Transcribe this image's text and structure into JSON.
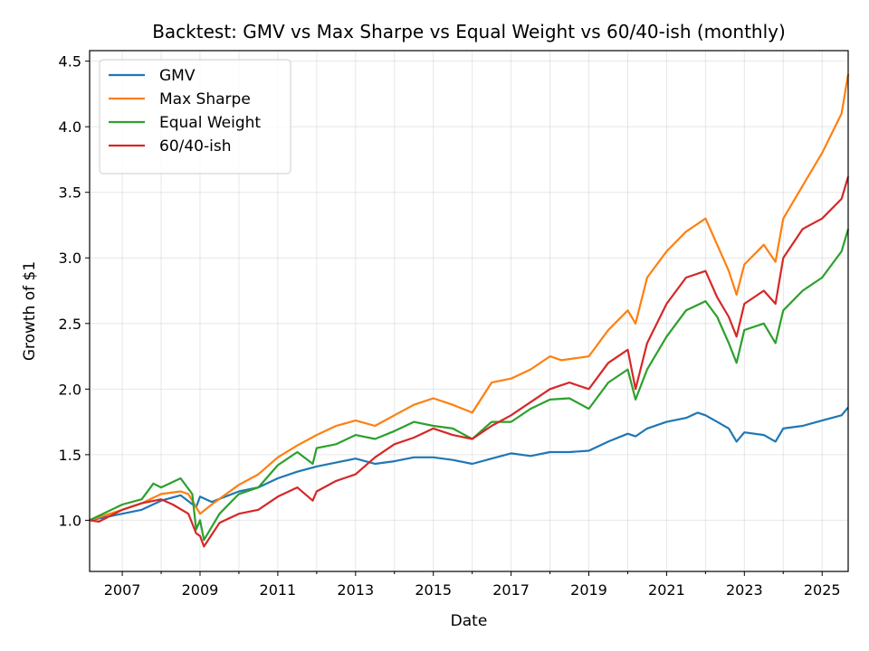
{
  "chart_data": {
    "type": "line",
    "title": "Backtest: GMV vs Max Sharpe vs Equal Weight vs 60/40-ish (monthly)",
    "xlabel": "Date",
    "ylabel": "Growth of $1",
    "xlim": [
      2006.16,
      2025.67
    ],
    "ylim": [
      0.61,
      4.58
    ],
    "xticks": [
      2007,
      2009,
      2011,
      2013,
      2015,
      2017,
      2019,
      2021,
      2023,
      2025
    ],
    "xtick_labels": [
      "2007",
      "2009",
      "2011",
      "2013",
      "2015",
      "2017",
      "2019",
      "2021",
      "2023",
      "2025"
    ],
    "minor_xticks": [
      2008,
      2010,
      2012,
      2014,
      2016,
      2018,
      2020,
      2022,
      2024
    ],
    "yticks": [
      1.0,
      1.5,
      2.0,
      2.5,
      3.0,
      3.5,
      4.0,
      4.5
    ],
    "ytick_labels": [
      "1.0",
      "1.5",
      "2.0",
      "2.5",
      "3.0",
      "3.5",
      "4.0",
      "4.5"
    ],
    "grid": true,
    "legend_position": "top-left",
    "series": [
      {
        "name": "GMV",
        "color": "#1f77b4",
        "points": [
          [
            2006.16,
            1.0
          ],
          [
            2007,
            1.05
          ],
          [
            2007.5,
            1.08
          ],
          [
            2008,
            1.15
          ],
          [
            2008.5,
            1.19
          ],
          [
            2008.9,
            1.1
          ],
          [
            2009,
            1.18
          ],
          [
            2009.3,
            1.14
          ],
          [
            2010,
            1.22
          ],
          [
            2010.5,
            1.25
          ],
          [
            2011,
            1.32
          ],
          [
            2011.5,
            1.37
          ],
          [
            2012,
            1.41
          ],
          [
            2012.5,
            1.44
          ],
          [
            2013,
            1.47
          ],
          [
            2013.5,
            1.43
          ],
          [
            2014,
            1.45
          ],
          [
            2014.5,
            1.48
          ],
          [
            2015,
            1.48
          ],
          [
            2015.5,
            1.46
          ],
          [
            2016,
            1.43
          ],
          [
            2016.5,
            1.47
          ],
          [
            2017,
            1.51
          ],
          [
            2017.5,
            1.49
          ],
          [
            2018,
            1.52
          ],
          [
            2018.5,
            1.52
          ],
          [
            2019,
            1.53
          ],
          [
            2019.5,
            1.6
          ],
          [
            2020,
            1.66
          ],
          [
            2020.2,
            1.64
          ],
          [
            2020.5,
            1.7
          ],
          [
            2021,
            1.75
          ],
          [
            2021.5,
            1.78
          ],
          [
            2021.8,
            1.82
          ],
          [
            2022,
            1.8
          ],
          [
            2022.3,
            1.75
          ],
          [
            2022.6,
            1.7
          ],
          [
            2022.8,
            1.6
          ],
          [
            2023,
            1.67
          ],
          [
            2023.5,
            1.65
          ],
          [
            2023.8,
            1.6
          ],
          [
            2024,
            1.7
          ],
          [
            2024.5,
            1.72
          ],
          [
            2025,
            1.76
          ],
          [
            2025.5,
            1.8
          ],
          [
            2025.67,
            1.86
          ]
        ]
      },
      {
        "name": "Max Sharpe",
        "color": "#ff7f0e",
        "points": [
          [
            2006.16,
            1.0
          ],
          [
            2007,
            1.08
          ],
          [
            2007.5,
            1.13
          ],
          [
            2008,
            1.2
          ],
          [
            2008.5,
            1.22
          ],
          [
            2008.7,
            1.2
          ],
          [
            2009,
            1.05
          ],
          [
            2009.3,
            1.12
          ],
          [
            2010,
            1.27
          ],
          [
            2010.5,
            1.35
          ],
          [
            2011,
            1.48
          ],
          [
            2011.5,
            1.57
          ],
          [
            2012,
            1.65
          ],
          [
            2012.5,
            1.72
          ],
          [
            2013,
            1.76
          ],
          [
            2013.5,
            1.72
          ],
          [
            2014,
            1.8
          ],
          [
            2014.5,
            1.88
          ],
          [
            2015,
            1.93
          ],
          [
            2015.5,
            1.88
          ],
          [
            2016,
            1.82
          ],
          [
            2016.5,
            2.05
          ],
          [
            2017,
            2.08
          ],
          [
            2017.5,
            2.15
          ],
          [
            2018,
            2.25
          ],
          [
            2018.3,
            2.22
          ],
          [
            2019,
            2.25
          ],
          [
            2019.5,
            2.45
          ],
          [
            2020,
            2.6
          ],
          [
            2020.2,
            2.5
          ],
          [
            2020.5,
            2.85
          ],
          [
            2021,
            3.05
          ],
          [
            2021.5,
            3.2
          ],
          [
            2022,
            3.3
          ],
          [
            2022.3,
            3.1
          ],
          [
            2022.6,
            2.9
          ],
          [
            2022.8,
            2.72
          ],
          [
            2023,
            2.95
          ],
          [
            2023.5,
            3.1
          ],
          [
            2023.8,
            2.97
          ],
          [
            2024,
            3.3
          ],
          [
            2024.5,
            3.55
          ],
          [
            2025,
            3.8
          ],
          [
            2025.5,
            4.1
          ],
          [
            2025.67,
            4.4
          ]
        ]
      },
      {
        "name": "Equal Weight",
        "color": "#2ca02c",
        "points": [
          [
            2006.16,
            1.0
          ],
          [
            2007,
            1.12
          ],
          [
            2007.5,
            1.16
          ],
          [
            2007.8,
            1.28
          ],
          [
            2008,
            1.25
          ],
          [
            2008.5,
            1.32
          ],
          [
            2008.8,
            1.2
          ],
          [
            2008.9,
            0.93
          ],
          [
            2009,
            1.0
          ],
          [
            2009.1,
            0.85
          ],
          [
            2009.5,
            1.05
          ],
          [
            2010,
            1.2
          ],
          [
            2010.5,
            1.25
          ],
          [
            2011,
            1.42
          ],
          [
            2011.5,
            1.52
          ],
          [
            2011.9,
            1.43
          ],
          [
            2012,
            1.55
          ],
          [
            2012.5,
            1.58
          ],
          [
            2013,
            1.65
          ],
          [
            2013.5,
            1.62
          ],
          [
            2014,
            1.68
          ],
          [
            2014.5,
            1.75
          ],
          [
            2015,
            1.72
          ],
          [
            2015.5,
            1.7
          ],
          [
            2016,
            1.62
          ],
          [
            2016.5,
            1.75
          ],
          [
            2017,
            1.75
          ],
          [
            2017.5,
            1.85
          ],
          [
            2018,
            1.92
          ],
          [
            2018.5,
            1.93
          ],
          [
            2019,
            1.85
          ],
          [
            2019.5,
            2.05
          ],
          [
            2020,
            2.15
          ],
          [
            2020.2,
            1.92
          ],
          [
            2020.5,
            2.15
          ],
          [
            2021,
            2.4
          ],
          [
            2021.5,
            2.6
          ],
          [
            2022,
            2.67
          ],
          [
            2022.3,
            2.55
          ],
          [
            2022.6,
            2.35
          ],
          [
            2022.8,
            2.2
          ],
          [
            2023,
            2.45
          ],
          [
            2023.5,
            2.5
          ],
          [
            2023.8,
            2.35
          ],
          [
            2024,
            2.6
          ],
          [
            2024.5,
            2.75
          ],
          [
            2025,
            2.85
          ],
          [
            2025.5,
            3.05
          ],
          [
            2025.67,
            3.22
          ]
        ]
      },
      {
        "name": "60/40-ish",
        "color": "#d62728",
        "points": [
          [
            2006.16,
            1.0
          ],
          [
            2006.4,
            0.99
          ],
          [
            2007,
            1.08
          ],
          [
            2007.5,
            1.13
          ],
          [
            2008,
            1.16
          ],
          [
            2008.3,
            1.12
          ],
          [
            2008.7,
            1.05
          ],
          [
            2008.9,
            0.9
          ],
          [
            2009,
            0.88
          ],
          [
            2009.1,
            0.8
          ],
          [
            2009.5,
            0.98
          ],
          [
            2010,
            1.05
          ],
          [
            2010.5,
            1.08
          ],
          [
            2011,
            1.18
          ],
          [
            2011.5,
            1.25
          ],
          [
            2011.9,
            1.15
          ],
          [
            2012,
            1.22
          ],
          [
            2012.5,
            1.3
          ],
          [
            2013,
            1.35
          ],
          [
            2013.5,
            1.48
          ],
          [
            2014,
            1.58
          ],
          [
            2014.5,
            1.63
          ],
          [
            2015,
            1.7
          ],
          [
            2015.5,
            1.65
          ],
          [
            2016,
            1.62
          ],
          [
            2016.5,
            1.72
          ],
          [
            2017,
            1.8
          ],
          [
            2017.5,
            1.9
          ],
          [
            2018,
            2.0
          ],
          [
            2018.5,
            2.05
          ],
          [
            2019,
            2.0
          ],
          [
            2019.5,
            2.2
          ],
          [
            2020,
            2.3
          ],
          [
            2020.2,
            2.0
          ],
          [
            2020.5,
            2.35
          ],
          [
            2021,
            2.65
          ],
          [
            2021.5,
            2.85
          ],
          [
            2022,
            2.9
          ],
          [
            2022.3,
            2.7
          ],
          [
            2022.6,
            2.55
          ],
          [
            2022.8,
            2.4
          ],
          [
            2023,
            2.65
          ],
          [
            2023.5,
            2.75
          ],
          [
            2023.8,
            2.65
          ],
          [
            2024,
            3.0
          ],
          [
            2024.5,
            3.22
          ],
          [
            2025,
            3.3
          ],
          [
            2025.5,
            3.45
          ],
          [
            2025.67,
            3.62
          ]
        ]
      }
    ]
  }
}
